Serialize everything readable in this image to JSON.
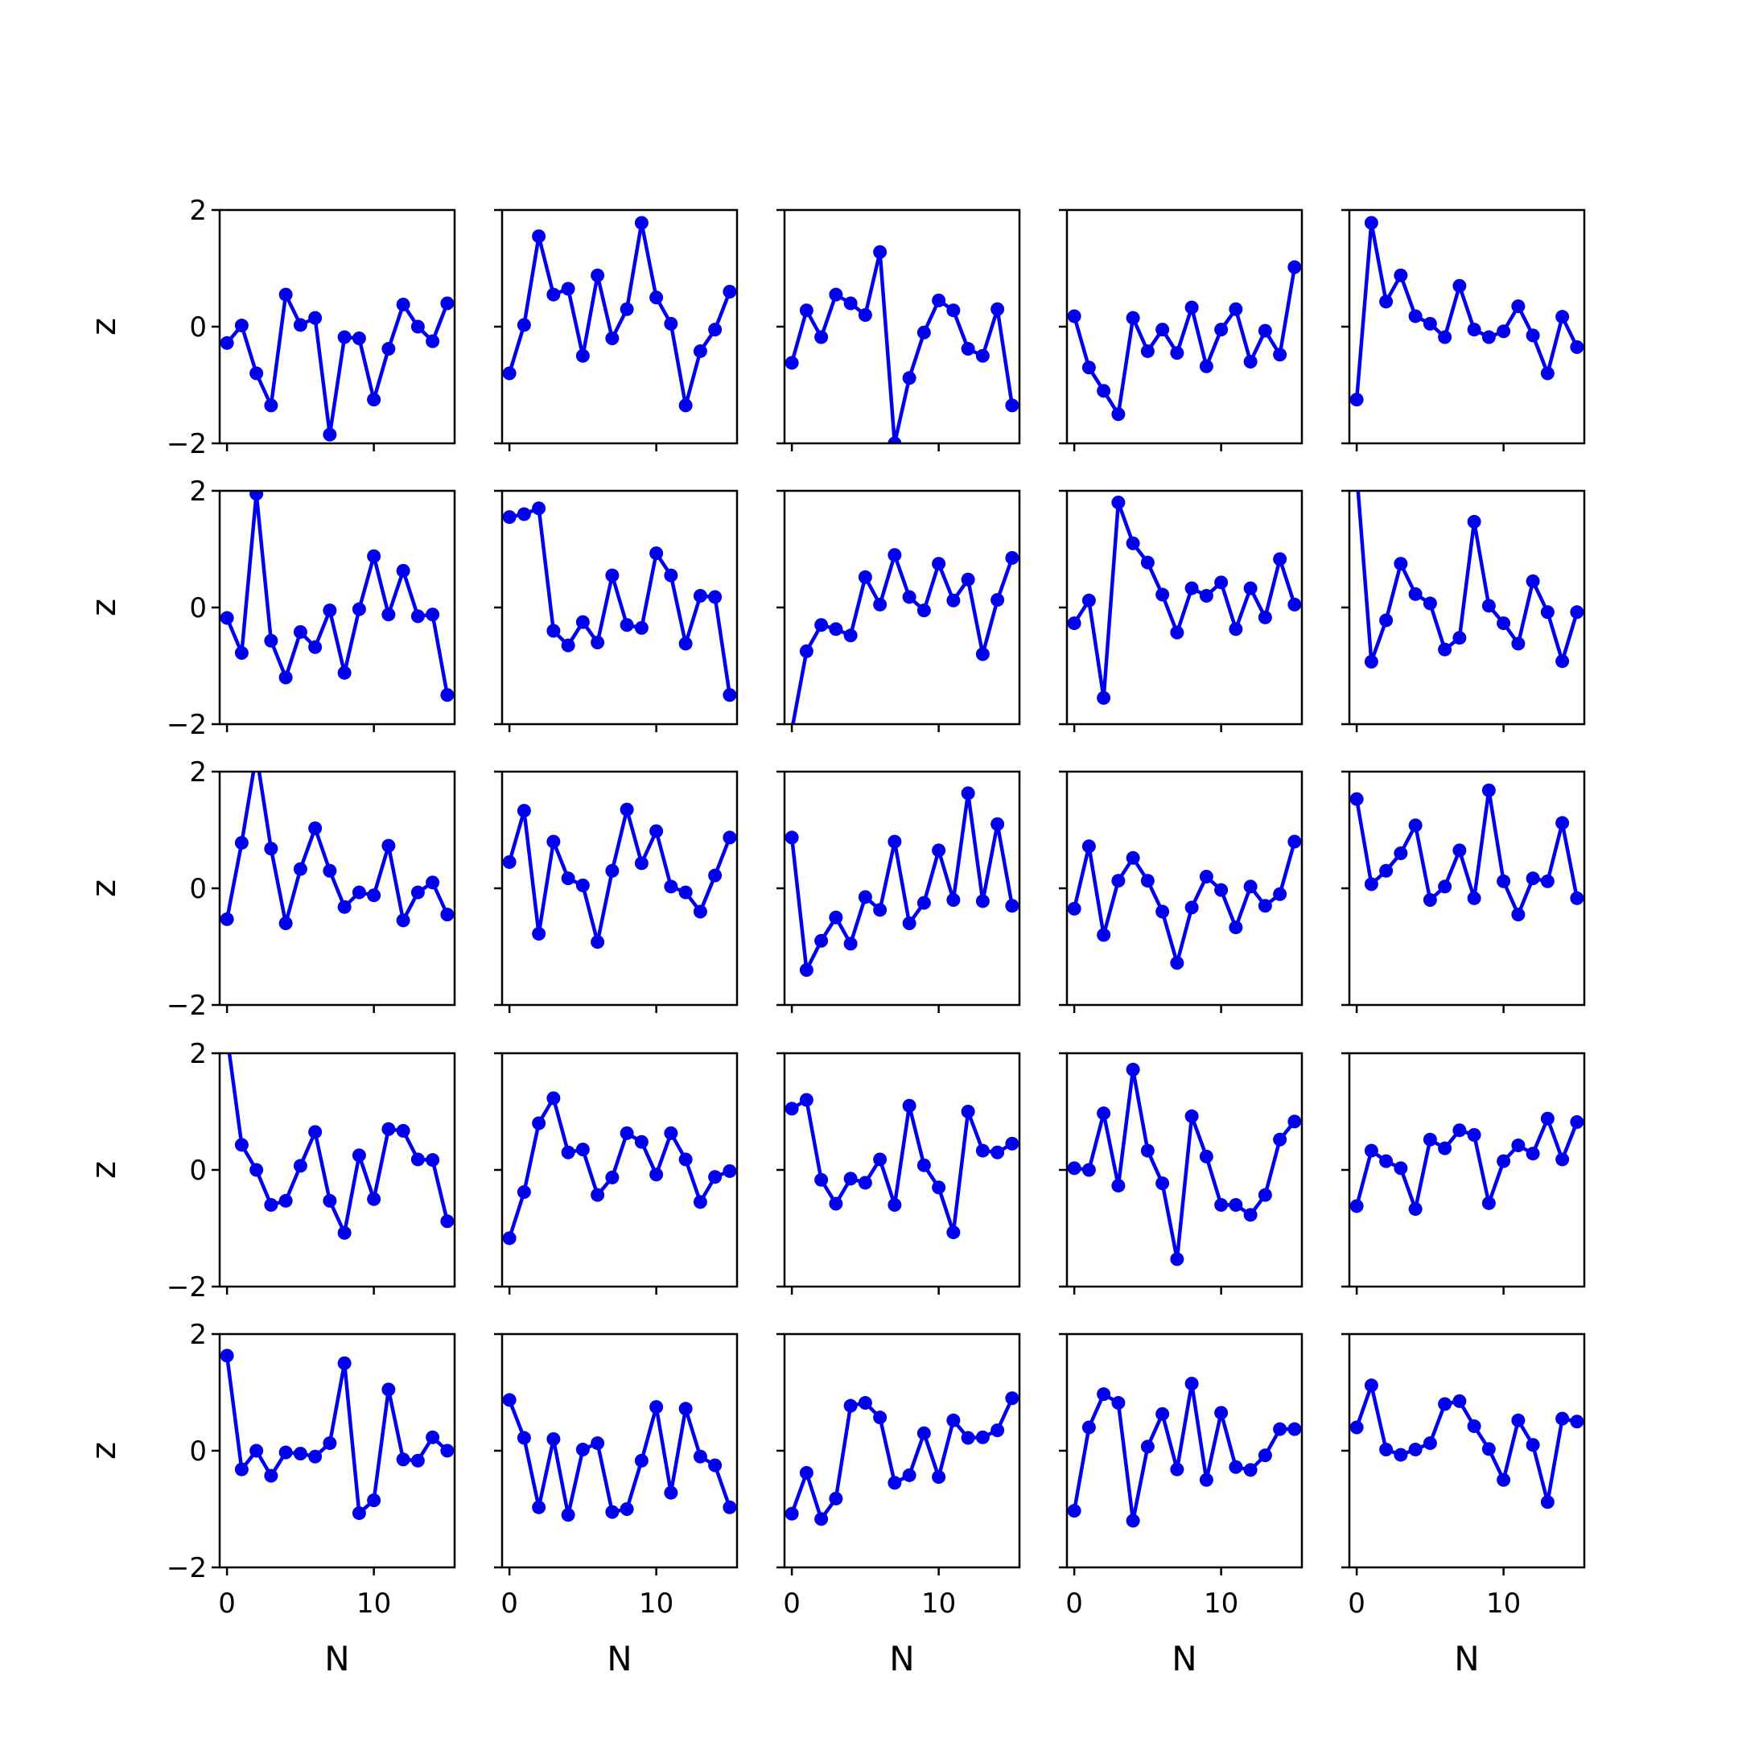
{
  "chart_data": {
    "type": "line",
    "layout": "5x5 grid of small multiples",
    "xlabel": "N",
    "ylabel": "z",
    "xlim": [
      -0.5,
      15.5
    ],
    "ylim": [
      -2,
      2
    ],
    "x_ticks": [
      0,
      10
    ],
    "y_ticks": [
      -2,
      0,
      2
    ],
    "x_tick_labels": [
      "0",
      "10"
    ],
    "y_tick_labels": [
      "−2",
      "0",
      "2"
    ],
    "x": [
      0,
      1,
      2,
      3,
      4,
      5,
      6,
      7,
      8,
      9,
      10,
      11,
      12,
      13,
      14,
      15
    ],
    "line_color": "#0000ee",
    "marker": "circle",
    "grid": false,
    "panels": [
      [
        {
          "values": [
            -0.28,
            0.02,
            -0.8,
            -1.35,
            0.55,
            0.03,
            0.15,
            -1.85,
            -0.18,
            -0.2,
            -1.25,
            -0.38,
            0.38,
            0.0,
            -0.25,
            0.4
          ]
        },
        {
          "values": [
            -0.8,
            0.03,
            1.55,
            0.55,
            0.65,
            -0.5,
            0.88,
            -0.2,
            0.3,
            1.78,
            0.5,
            0.05,
            -1.35,
            -0.42,
            -0.05,
            0.6
          ]
        },
        {
          "values": [
            -0.62,
            0.28,
            -0.18,
            0.55,
            0.4,
            0.2,
            1.28,
            -2.0,
            -0.88,
            -0.1,
            0.45,
            0.28,
            -0.38,
            -0.5,
            0.3,
            -1.35
          ]
        },
        {
          "values": [
            0.18,
            -0.7,
            -1.1,
            -1.5,
            0.15,
            -0.42,
            -0.05,
            -0.45,
            0.33,
            -0.68,
            -0.05,
            0.3,
            -0.6,
            -0.07,
            -0.48,
            1.02
          ]
        },
        {
          "values": [
            -1.25,
            1.78,
            0.43,
            0.88,
            0.18,
            0.05,
            -0.18,
            0.7,
            -0.05,
            -0.18,
            -0.08,
            0.35,
            -0.15,
            -0.8,
            0.17,
            -0.35
          ]
        }
      ],
      [
        {
          "values": [
            -0.18,
            -0.78,
            1.95,
            -0.57,
            -1.2,
            -0.42,
            -0.68,
            -0.05,
            -1.12,
            -0.03,
            0.88,
            -0.12,
            0.63,
            -0.15,
            -0.12,
            -1.5
          ]
        },
        {
          "values": [
            1.55,
            1.6,
            1.7,
            -0.4,
            -0.65,
            -0.25,
            -0.6,
            0.55,
            -0.3,
            -0.35,
            0.93,
            0.55,
            -0.62,
            0.2,
            0.18,
            -1.5
          ]
        },
        {
          "values": [
            -2.1,
            -0.75,
            -0.3,
            -0.37,
            -0.48,
            0.52,
            0.05,
            0.9,
            0.18,
            -0.05,
            0.75,
            0.12,
            0.48,
            -0.8,
            0.13,
            0.85
          ]
        },
        {
          "values": [
            -0.27,
            0.12,
            -1.55,
            1.8,
            1.1,
            0.77,
            0.22,
            -0.43,
            0.33,
            0.2,
            0.43,
            -0.37,
            0.33,
            -0.17,
            0.83,
            0.05
          ]
        },
        {
          "values": [
            2.3,
            -0.93,
            -0.22,
            0.75,
            0.23,
            0.07,
            -0.72,
            -0.52,
            1.47,
            0.03,
            -0.27,
            -0.62,
            0.45,
            -0.08,
            -0.92,
            -0.08
          ]
        }
      ],
      [
        {
          "values": [
            -0.53,
            0.78,
            2.3,
            0.68,
            -0.6,
            0.33,
            1.03,
            0.3,
            -0.32,
            -0.07,
            -0.12,
            0.73,
            -0.55,
            -0.07,
            0.1,
            -0.45
          ]
        },
        {
          "values": [
            0.45,
            1.33,
            -0.78,
            0.8,
            0.17,
            0.05,
            -0.92,
            0.3,
            1.35,
            0.43,
            0.98,
            0.03,
            -0.07,
            -0.4,
            0.22,
            0.87
          ]
        },
        {
          "values": [
            0.87,
            -1.4,
            -0.9,
            -0.5,
            -0.95,
            -0.15,
            -0.37,
            0.8,
            -0.6,
            -0.25,
            0.65,
            -0.2,
            1.63,
            -0.22,
            1.1,
            -0.3
          ]
        },
        {
          "values": [
            -0.35,
            0.72,
            -0.8,
            0.13,
            0.52,
            0.13,
            -0.4,
            -1.28,
            -0.33,
            0.2,
            -0.03,
            -0.67,
            0.03,
            -0.3,
            -0.1,
            0.8
          ]
        },
        {
          "values": [
            1.53,
            0.07,
            0.3,
            0.6,
            1.08,
            -0.2,
            0.03,
            0.65,
            -0.17,
            1.68,
            0.12,
            -0.45,
            0.17,
            0.12,
            1.12,
            -0.17
          ]
        }
      ],
      [
        {
          "values": [
            2.3,
            0.43,
            0.0,
            -0.6,
            -0.53,
            0.07,
            0.65,
            -0.53,
            -1.08,
            0.25,
            -0.5,
            0.7,
            0.67,
            0.18,
            0.17,
            -0.88
          ]
        },
        {
          "values": [
            -1.17,
            -0.38,
            0.8,
            1.23,
            0.3,
            0.35,
            -0.43,
            -0.13,
            0.63,
            0.48,
            -0.08,
            0.63,
            0.18,
            -0.55,
            -0.12,
            -0.02
          ]
        },
        {
          "values": [
            1.05,
            1.2,
            -0.17,
            -0.58,
            -0.15,
            -0.22,
            0.18,
            -0.6,
            1.1,
            0.08,
            -0.3,
            -1.07,
            1.0,
            0.33,
            0.3,
            0.45
          ]
        },
        {
          "values": [
            0.03,
            0.0,
            0.97,
            -0.27,
            1.72,
            0.33,
            -0.23,
            -1.53,
            0.92,
            0.23,
            -0.6,
            -0.6,
            -0.77,
            -0.43,
            0.52,
            0.83
          ]
        },
        {
          "values": [
            -0.62,
            0.33,
            0.15,
            0.03,
            -0.67,
            0.52,
            0.37,
            0.68,
            0.6,
            -0.57,
            0.15,
            0.42,
            0.28,
            0.88,
            0.18,
            0.82
          ]
        }
      ],
      [
        {
          "values": [
            1.63,
            -0.32,
            0.0,
            -0.43,
            -0.03,
            -0.05,
            -0.1,
            0.13,
            1.5,
            -1.07,
            -0.85,
            1.05,
            -0.15,
            -0.17,
            0.23,
            0.0
          ]
        },
        {
          "values": [
            0.87,
            0.22,
            -0.97,
            0.2,
            -1.1,
            0.02,
            0.13,
            -1.05,
            -1.0,
            -0.17,
            0.75,
            -0.72,
            0.72,
            -0.1,
            -0.25,
            -0.97
          ]
        },
        {
          "values": [
            -1.08,
            -0.38,
            -1.17,
            -0.82,
            0.77,
            0.82,
            0.57,
            -0.55,
            -0.42,
            0.3,
            -0.45,
            0.52,
            0.22,
            0.23,
            0.35,
            0.9
          ]
        },
        {
          "values": [
            -1.03,
            0.4,
            0.97,
            0.82,
            -1.2,
            0.07,
            0.63,
            -0.32,
            1.15,
            -0.5,
            0.65,
            -0.28,
            -0.33,
            -0.08,
            0.37,
            0.37
          ]
        },
        {
          "values": [
            0.4,
            1.12,
            0.02,
            -0.07,
            0.02,
            0.13,
            0.8,
            0.85,
            0.42,
            0.03,
            -0.5,
            0.52,
            0.1,
            -0.88,
            0.55,
            0.5
          ]
        }
      ]
    ]
  }
}
